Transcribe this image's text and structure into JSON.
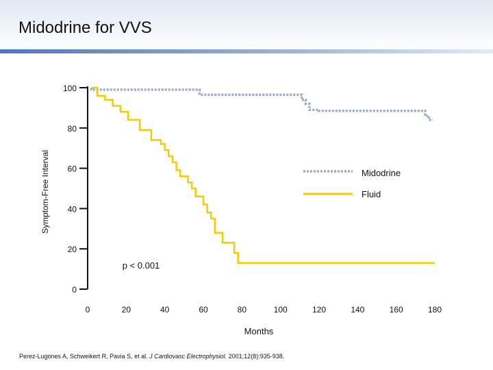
{
  "slide": {
    "title": "Midodrine for VVS",
    "citation_pre": "Perez-Lugones A, Schweikert R, Pavia S, et al. ",
    "citation_journal": "J Cardiovasc Electrophysiol.",
    "citation_post": " 2001;12(8):935-938."
  },
  "colors": {
    "midodrine": "#9aaccb",
    "fluid": "#f5cc00",
    "axis": "#111111"
  },
  "chart_data": {
    "type": "line",
    "title": "",
    "xlabel": "Months",
    "ylabel": "Symptom-Free Interval",
    "xlim": [
      0,
      180
    ],
    "ylim": [
      0,
      100
    ],
    "x_ticks": [
      0,
      20,
      40,
      60,
      80,
      100,
      120,
      140,
      160,
      180
    ],
    "y_ticks": [
      0,
      20,
      40,
      60,
      80,
      100
    ],
    "annotation": "p < 0.001",
    "legend_position": "right",
    "series": [
      {
        "name": "Midodrine",
        "style": "dotted",
        "x": [
          2,
          2,
          58,
          58,
          111,
          111,
          113,
          113,
          115,
          115,
          120,
          120,
          175,
          175,
          177,
          177,
          179
        ],
        "y": [
          100,
          99,
          99,
          96.5,
          96.5,
          94,
          94,
          92,
          92,
          89,
          89,
          88.5,
          88.5,
          86,
          86,
          84,
          84
        ]
      },
      {
        "name": "Fluid",
        "style": "solid",
        "x": [
          2,
          5,
          5,
          9,
          9,
          13,
          13,
          17,
          17,
          21,
          21,
          27,
          27,
          33,
          33,
          38,
          38,
          40,
          40,
          42,
          42,
          44,
          44,
          46,
          46,
          48,
          48,
          52,
          52,
          54,
          54,
          56,
          56,
          60,
          60,
          62,
          62,
          64,
          64,
          66,
          66,
          70,
          70,
          76,
          76,
          78,
          78,
          180
        ],
        "y": [
          100,
          100,
          96,
          96,
          94,
          94,
          91,
          91,
          88,
          88,
          84,
          84,
          79,
          79,
          74,
          74,
          72,
          72,
          69,
          69,
          66,
          66,
          63,
          63,
          59,
          59,
          56,
          56,
          53,
          53,
          50,
          50,
          46,
          46,
          42,
          42,
          38,
          38,
          35,
          35,
          28,
          28,
          23,
          23,
          18,
          18,
          13,
          13
        ]
      }
    ]
  }
}
